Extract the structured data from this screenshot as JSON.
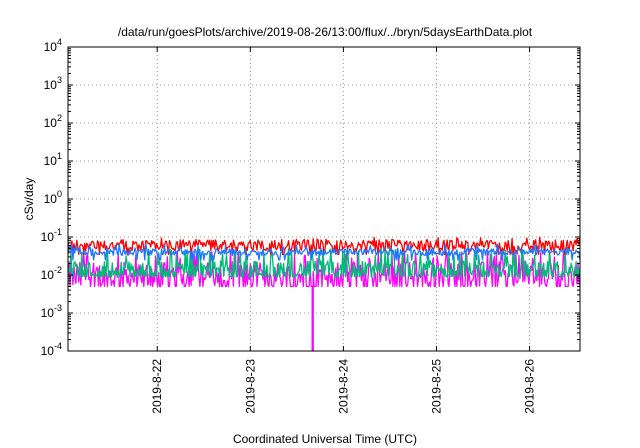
{
  "chart_data": {
    "type": "line",
    "title": "/data/run/goesPlots/archive/2019-08-26/13:00/flux/../bryn/5daysEarthData.plot",
    "xlabel": "Coordinated Universal Time (UTC)",
    "ylabel": "cSv/day",
    "yscale": "log",
    "ylim": [
      0.0001,
      10000
    ],
    "xlim": [
      "2019-08-21T01:00",
      "2019-08-26T13:00"
    ],
    "grid": true,
    "x_ticks": [
      {
        "x": "2019-08-22T00:00",
        "label": "2019-8-22"
      },
      {
        "x": "2019-08-23T00:00",
        "label": "2019-8-23"
      },
      {
        "x": "2019-08-24T00:00",
        "label": "2019-8-24"
      },
      {
        "x": "2019-08-25T00:00",
        "label": "2019-8-25"
      },
      {
        "x": "2019-08-26T00:00",
        "label": "2019-8-26"
      }
    ],
    "y_ticks": [
      {
        "y": 0.0001,
        "base": "10",
        "exp": "-4"
      },
      {
        "y": 0.001,
        "base": "10",
        "exp": "-3"
      },
      {
        "y": 0.01,
        "base": "10",
        "exp": "-2"
      },
      {
        "y": 0.1,
        "base": "10",
        "exp": "-1"
      },
      {
        "y": 1,
        "base": "10",
        "exp": "0"
      },
      {
        "y": 10,
        "base": "10",
        "exp": "1"
      },
      {
        "y": 100,
        "base": "10",
        "exp": "2"
      },
      {
        "y": 1000,
        "base": "10",
        "exp": "3"
      },
      {
        "y": 10000,
        "base": "10",
        "exp": "4"
      }
    ],
    "series": [
      {
        "color": "#ff00ff",
        "level": 0.009,
        "low": 0.005,
        "high": 0.045,
        "noise": 0.9
      },
      {
        "color": "#00bb77",
        "level": 0.013,
        "low": 0.009,
        "high": 0.05,
        "noise": 0.6
      },
      {
        "color": "#ff0000",
        "level": 0.06,
        "low": 0.035,
        "high": 0.1,
        "noise": 0.35
      },
      {
        "color": "#1f77ff",
        "level": 0.04,
        "low": 0.025,
        "high": 0.065,
        "noise": 0.2
      }
    ],
    "dropout": {
      "series_color": "#ff00ff",
      "x": "2019-08-23T16:00",
      "value": 0.0001
    }
  }
}
